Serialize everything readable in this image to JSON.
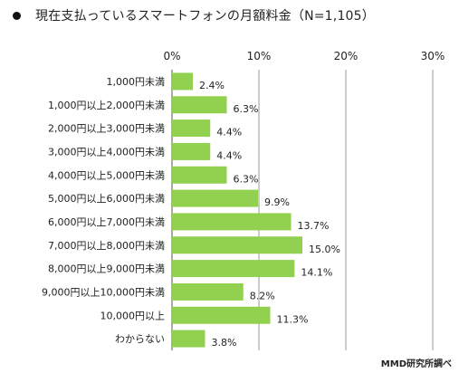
{
  "chart_data": {
    "type": "bar",
    "orientation": "horizontal",
    "title": "現在支払っているスマートフォンの月額料金（N=1,105）",
    "categories": [
      "1,000円未満",
      "1,000円以上2,000円未満",
      "2,000円以上3,000円未満",
      "3,000円以上4,000円未満",
      "4,000円以上5,000円未満",
      "5,000円以上6,000円未満",
      "6,000円以上7,000円未満",
      "7,000円以上8,000円未満",
      "8,000円以上9,000円未満",
      "9,000円以上10,000円未満",
      "10,000円以上",
      "わからない"
    ],
    "values": [
      2.4,
      6.3,
      4.4,
      4.4,
      6.3,
      9.9,
      13.7,
      15.0,
      14.1,
      8.2,
      11.3,
      3.8
    ],
    "value_labels": [
      "2.4%",
      "6.3%",
      "4.4%",
      "4.4%",
      "6.3%",
      "9.9%",
      "13.7%",
      "15.0%",
      "14.1%",
      "8.2%",
      "11.3%",
      "3.8%"
    ],
    "xlim": [
      0,
      30
    ],
    "x_ticks": [
      "0%",
      "10%",
      "20%",
      "30%"
    ],
    "tick_position": "top",
    "grid": true,
    "bar_color": "#92d050",
    "source": "MMD研究所調べ"
  }
}
